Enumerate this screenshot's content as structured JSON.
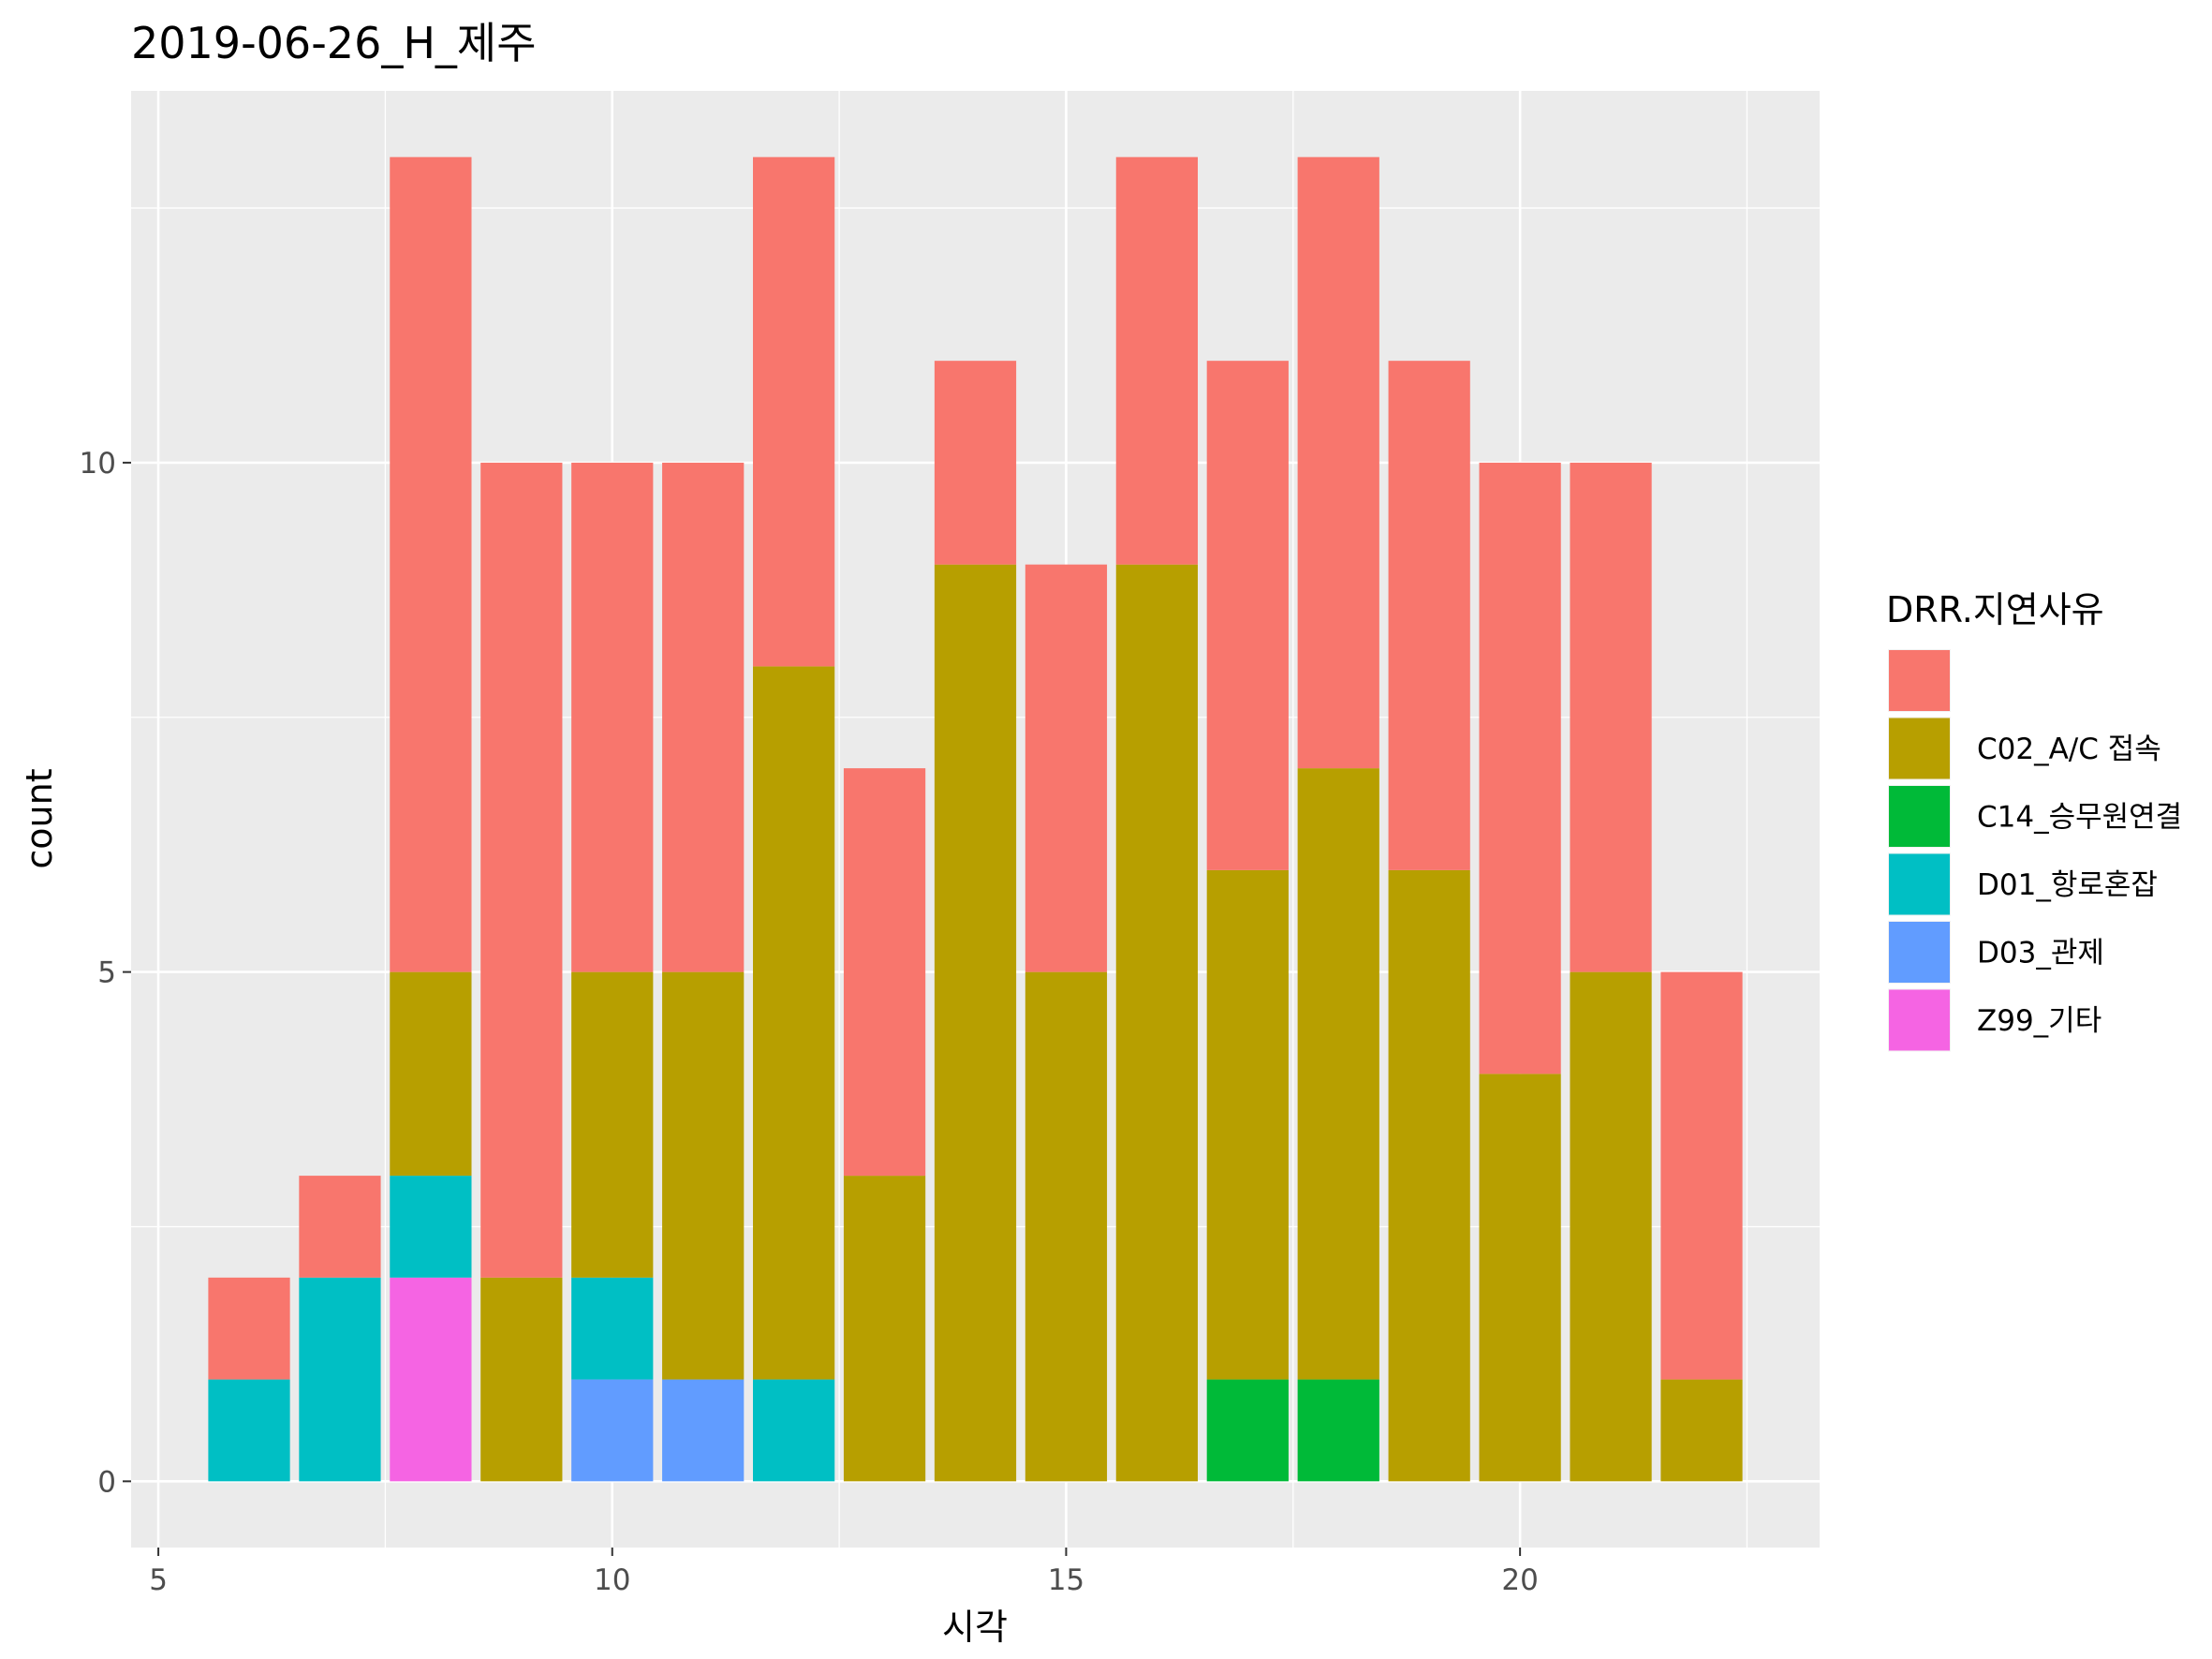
{
  "chart_data": {
    "type": "bar",
    "stacked": true,
    "title": "2019-06-26_H_제주",
    "xlabel": "시각",
    "ylabel": "count",
    "x": [
      6,
      7,
      8,
      9,
      10,
      11,
      12,
      13,
      14,
      15,
      16,
      17,
      18,
      19,
      20,
      21,
      22
    ],
    "xlim": [
      4.7,
      23.3
    ],
    "ylim": [
      -0.65,
      13.65
    ],
    "x_ticks": [
      5,
      10,
      15,
      20
    ],
    "y_ticks": [
      0,
      5,
      10
    ],
    "grid": true,
    "legend_title": "DRR.지연사유",
    "legend_position": "right",
    "series": [
      {
        "name": "",
        "color": "#F8766D",
        "values": [
          1,
          1,
          8,
          8,
          5,
          5,
          5,
          4,
          2,
          4,
          4,
          5,
          6,
          5,
          6,
          5,
          4
        ]
      },
      {
        "name": "C02_A/C 접속",
        "color": "#B79F00",
        "values": [
          0,
          0,
          2,
          2,
          3,
          4,
          7,
          3,
          9,
          5,
          9,
          5,
          6,
          6,
          4,
          5,
          1
        ]
      },
      {
        "name": "C14_승무원연결",
        "color": "#00BA38",
        "values": [
          0,
          0,
          0,
          0,
          0,
          0,
          0,
          0,
          0,
          0,
          0,
          1,
          1,
          0,
          0,
          0,
          0
        ]
      },
      {
        "name": "D01_항로혼잡",
        "color": "#00BFC4",
        "values": [
          1,
          2,
          1,
          0,
          1,
          0,
          1,
          0,
          0,
          0,
          0,
          0,
          0,
          0,
          0,
          0,
          0
        ]
      },
      {
        "name": "D03_관제",
        "color": "#619CFF",
        "values": [
          0,
          0,
          0,
          0,
          1,
          1,
          0,
          0,
          0,
          0,
          0,
          0,
          0,
          0,
          0,
          0,
          0
        ]
      },
      {
        "name": "Z99_기타",
        "color": "#F564E3",
        "values": [
          0,
          0,
          2,
          0,
          0,
          0,
          0,
          0,
          0,
          0,
          0,
          0,
          0,
          0,
          0,
          0,
          0
        ]
      }
    ]
  }
}
